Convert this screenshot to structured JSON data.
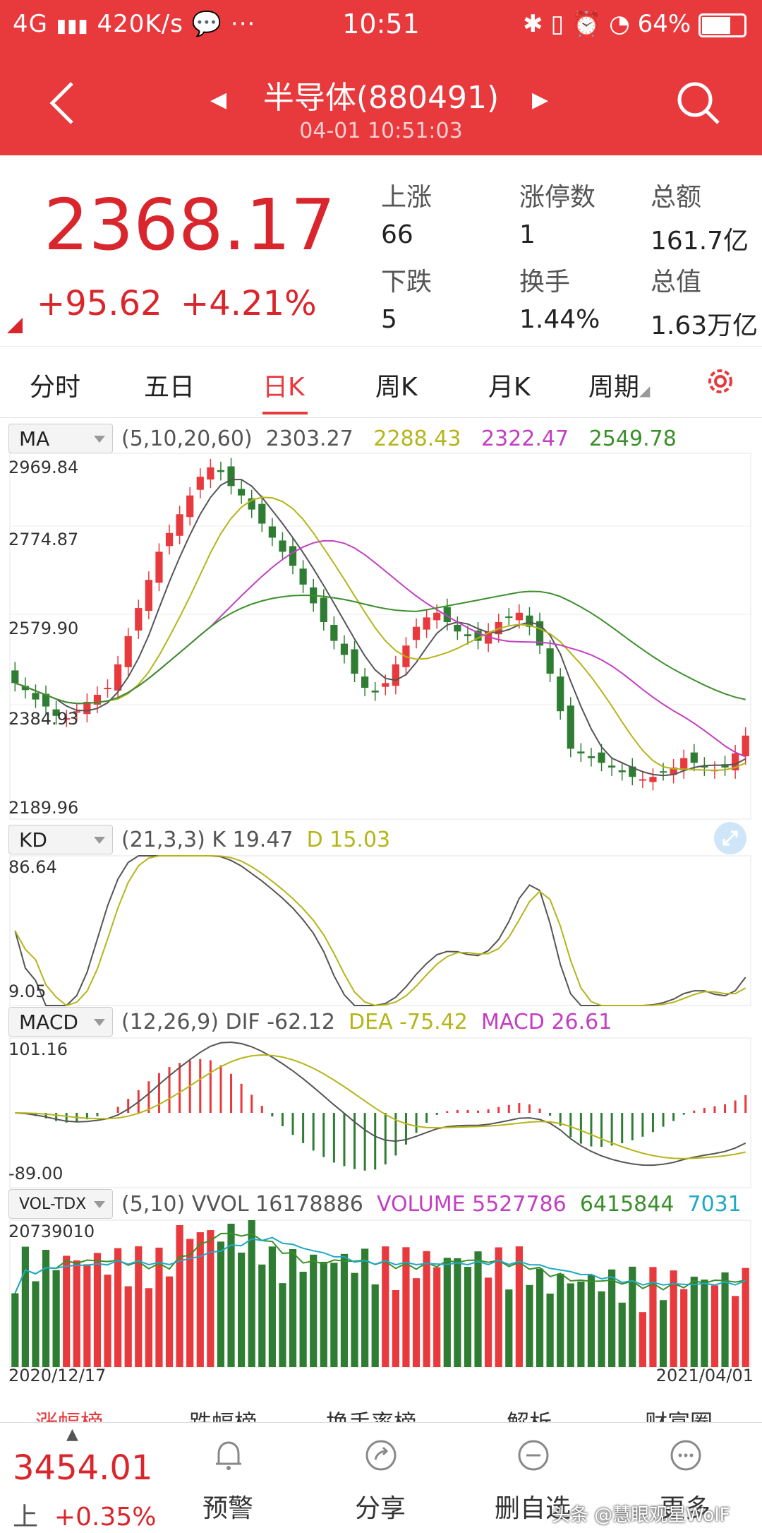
{
  "status_bar": {
    "network": "4G",
    "speed": "420K/s",
    "time": "10:51",
    "battery": "64%"
  },
  "header": {
    "title": "半导体(880491)",
    "datetime": "04-01 10:51:03"
  },
  "quote": {
    "price": "2368.17",
    "change": "+95.62",
    "change_pct": "+4.21%",
    "stats": [
      {
        "label": "上涨",
        "value": "66"
      },
      {
        "label": "涨停数",
        "value": "1"
      },
      {
        "label": "总额",
        "value": "161.7亿"
      },
      {
        "label": "下跌",
        "value": "5"
      },
      {
        "label": "换手",
        "value": "1.44%"
      },
      {
        "label": "总值",
        "value": "1.63万亿"
      }
    ]
  },
  "tabs": [
    "分时",
    "五日",
    "日K",
    "周K",
    "月K",
    "周期"
  ],
  "active_tab": "日K",
  "indicators": {
    "ma": {
      "name": "MA",
      "params": "(5,10,20,60)",
      "values": [
        "2303.27",
        "2288.43",
        "2322.47",
        "2549.78"
      ],
      "colors": [
        "#555555",
        "#b5b51a",
        "#c23fc2",
        "#3b8f2b"
      ]
    },
    "kd": {
      "name": "KD",
      "params": "(21,3,3)",
      "k_label": "K",
      "k": "19.47",
      "d_label": "D",
      "d": "15.03"
    },
    "macd": {
      "name": "MACD",
      "params": "(12,26,9)",
      "dif_label": "DIF",
      "dif": "-62.12",
      "dea_label": "DEA",
      "dea": "-75.42",
      "macd_label": "MACD",
      "macd": "26.61"
    },
    "vol": {
      "name": "VOL-TDX",
      "params": "(5,10)",
      "vvol_label": "VVOL",
      "vvol": "16178886",
      "volume_label": "VOLUME",
      "volume": "5527786",
      "v5": "6415844",
      "v10": "7031"
    }
  },
  "axes": {
    "price_ticks": [
      "2969.84",
      "2774.87",
      "2579.90",
      "2384.93",
      "2189.96"
    ],
    "kd_ticks": [
      "86.64",
      "9.05"
    ],
    "macd_ticks": [
      "101.16",
      "-89.00"
    ],
    "vol_top": "20739010",
    "date_start": "2020/12/17",
    "date_end": "2021/04/01"
  },
  "bottom_tabs": [
    "涨幅榜",
    "跌幅榜",
    "换手率榜",
    "解析",
    "财富圈"
  ],
  "bottom_bar": {
    "index_value": "3454.01",
    "index_label": "上",
    "index_change": "+0.35%",
    "items": [
      "预警",
      "分享",
      "删自选",
      "更多"
    ],
    "watermark": "头条 @慧眼观星WolF"
  },
  "colors": {
    "up": "#e8393d",
    "down": "#2e7d32",
    "header_bg": "#e8393d"
  },
  "chart_data": {
    "type": "candlestick",
    "title": "",
    "x_range": [
      "2020/12/17",
      "2021/04/01"
    ],
    "ylim": [
      2189.96,
      2969.84
    ],
    "candles_approx_close": [
      2480,
      2465,
      2445,
      2430,
      2410,
      2405,
      2420,
      2440,
      2455,
      2470,
      2520,
      2580,
      2640,
      2700,
      2760,
      2800,
      2840,
      2880,
      2920,
      2940,
      2930,
      2900,
      2880,
      2850,
      2820,
      2790,
      2760,
      2730,
      2690,
      2650,
      2610,
      2570,
      2540,
      2500,
      2470,
      2460,
      2480,
      2520,
      2560,
      2600,
      2620,
      2630,
      2610,
      2590,
      2580,
      2570,
      2590,
      2610,
      2620,
      2630,
      2600,
      2560,
      2500,
      2420,
      2340,
      2330,
      2320,
      2310,
      2300,
      2290,
      2280,
      2275,
      2280,
      2290,
      2300,
      2320,
      2310,
      2300,
      2295,
      2300,
      2330,
      2368
    ]
  }
}
